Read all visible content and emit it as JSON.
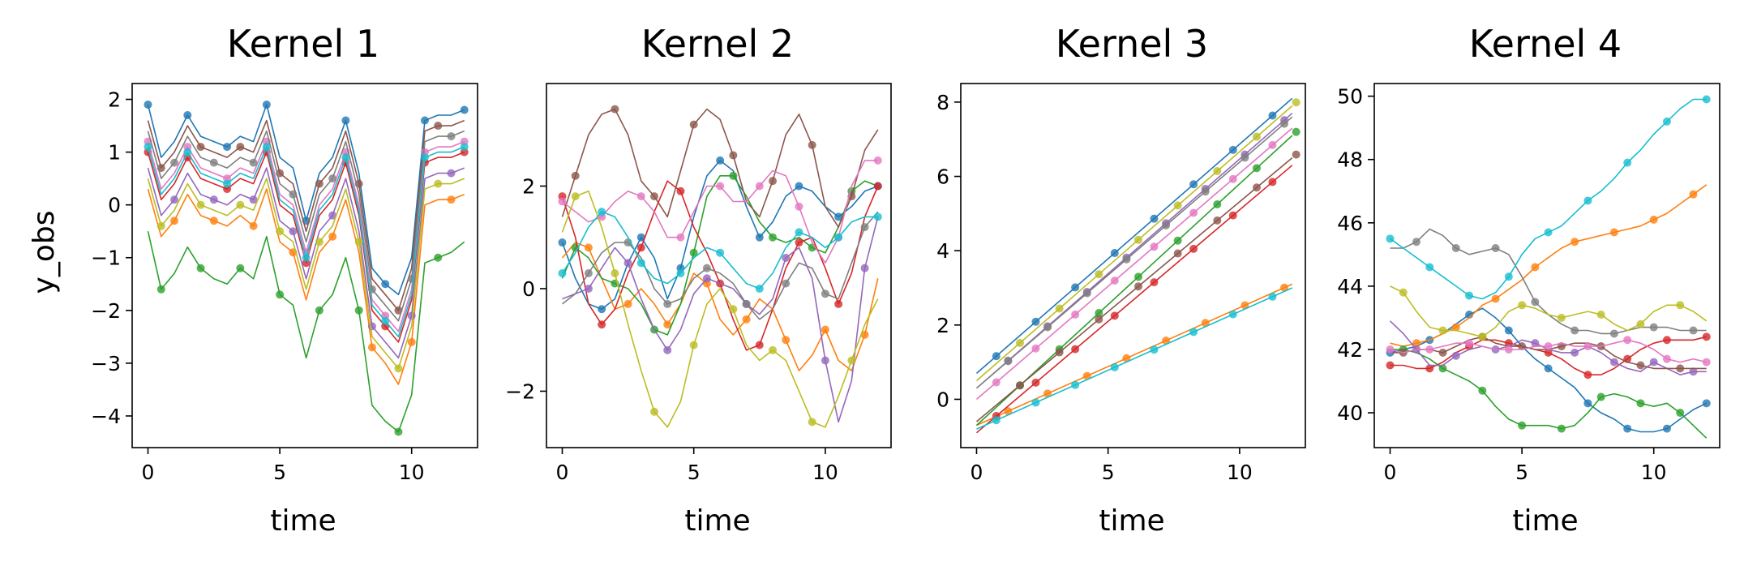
{
  "figure": {
    "ylabel": "y_obs"
  },
  "chart_data": [
    {
      "type": "line",
      "title": "Kernel 1",
      "xlabel": "time",
      "xlim": [
        -0.6,
        12.5
      ],
      "ylim": [
        -4.6,
        2.3
      ],
      "xticks": [
        0,
        5,
        10
      ],
      "yticks": [
        -4,
        -3,
        -2,
        -1,
        0,
        1,
        2
      ],
      "x": [
        0,
        0.5,
        1,
        1.5,
        2,
        2.5,
        3,
        3.5,
        4,
        4.5,
        5,
        5.5,
        6,
        6.5,
        7,
        7.5,
        8,
        8.5,
        9,
        9.5,
        10,
        10.5,
        11,
        11.5,
        12
      ],
      "series": [
        {
          "color": "#1f77b4",
          "values": [
            1.9,
            0.9,
            1.2,
            1.7,
            1.3,
            1.2,
            1.1,
            1.3,
            1.2,
            1.9,
            0.9,
            0.7,
            -0.3,
            0.6,
            0.9,
            1.6,
            0.6,
            -1.2,
            -1.5,
            -1.7,
            -1.0,
            1.6,
            1.7,
            1.7,
            1.8
          ]
        },
        {
          "color": "#ff7f0e",
          "values": [
            0.3,
            -0.6,
            -0.3,
            0.2,
            -0.2,
            -0.3,
            -0.4,
            -0.2,
            -0.4,
            0.3,
            -0.7,
            -0.9,
            -1.8,
            -0.9,
            -0.6,
            0.1,
            -0.9,
            -2.7,
            -3.0,
            -3.4,
            -2.6,
            0.0,
            0.1,
            0.1,
            0.2
          ]
        },
        {
          "color": "#2ca02c",
          "values": [
            -0.5,
            -1.6,
            -1.3,
            -0.8,
            -1.2,
            -1.4,
            -1.5,
            -1.2,
            -1.4,
            -0.6,
            -1.7,
            -1.9,
            -2.9,
            -2.0,
            -1.7,
            -1.0,
            -2.0,
            -3.8,
            -4.1,
            -4.3,
            -3.6,
            -1.1,
            -1.0,
            -0.9,
            -0.7
          ]
        },
        {
          "color": "#d62728",
          "values": [
            1.0,
            0.1,
            0.4,
            0.9,
            0.5,
            0.4,
            0.3,
            0.5,
            0.4,
            1.0,
            0.0,
            -0.2,
            -1.1,
            -0.2,
            0.1,
            0.8,
            -0.2,
            -2.0,
            -2.3,
            -2.6,
            -1.8,
            0.8,
            0.9,
            0.9,
            1.0
          ]
        },
        {
          "color": "#9467bd",
          "values": [
            0.7,
            -0.2,
            0.1,
            0.6,
            0.2,
            0.1,
            0.0,
            0.2,
            0.1,
            0.7,
            -0.3,
            -0.5,
            -1.4,
            -0.5,
            -0.2,
            0.5,
            -0.5,
            -2.3,
            -2.6,
            -2.9,
            -2.1,
            0.5,
            0.6,
            0.6,
            0.7
          ]
        },
        {
          "color": "#8c564b",
          "values": [
            1.6,
            0.7,
            1.0,
            1.5,
            1.1,
            1.0,
            0.9,
            1.1,
            1.0,
            1.6,
            0.6,
            0.4,
            -0.5,
            0.4,
            0.7,
            1.4,
            0.4,
            -1.4,
            -1.7,
            -2.0,
            -1.2,
            1.4,
            1.5,
            1.5,
            1.6
          ]
        },
        {
          "color": "#e377c2",
          "values": [
            1.2,
            0.3,
            0.6,
            1.1,
            0.7,
            0.6,
            0.5,
            0.7,
            0.6,
            1.2,
            0.2,
            0.0,
            -0.9,
            0.0,
            0.3,
            1.0,
            0.0,
            -1.8,
            -2.1,
            -2.4,
            -1.6,
            1.0,
            1.1,
            1.1,
            1.2
          ]
        },
        {
          "color": "#7f7f7f",
          "values": [
            1.4,
            0.5,
            0.8,
            1.3,
            0.9,
            0.8,
            0.7,
            0.9,
            0.8,
            1.4,
            0.4,
            0.2,
            -0.7,
            0.2,
            0.5,
            1.2,
            0.2,
            -1.6,
            -1.9,
            -2.2,
            -1.4,
            1.2,
            1.3,
            1.3,
            1.4
          ]
        },
        {
          "color": "#bcbd22",
          "values": [
            0.5,
            -0.4,
            -0.1,
            0.4,
            0.0,
            -0.1,
            -0.2,
            0.0,
            -0.1,
            0.5,
            -0.5,
            -0.7,
            -1.6,
            -0.7,
            -0.4,
            0.3,
            -0.7,
            -2.5,
            -2.8,
            -3.1,
            -2.3,
            0.3,
            0.4,
            0.4,
            0.5
          ]
        },
        {
          "color": "#17becf",
          "values": [
            1.1,
            0.2,
            0.5,
            1.0,
            0.6,
            0.5,
            0.4,
            0.6,
            0.5,
            1.1,
            0.1,
            -0.1,
            -1.0,
            -0.1,
            0.2,
            0.9,
            -0.1,
            -1.9,
            -2.2,
            -2.5,
            -1.7,
            0.9,
            1.0,
            1.0,
            1.1
          ]
        }
      ]
    },
    {
      "type": "line",
      "title": "Kernel 2",
      "xlabel": "time",
      "xlim": [
        -0.6,
        12.5
      ],
      "ylim": [
        -3.1,
        4.0
      ],
      "xticks": [
        0,
        5,
        10
      ],
      "yticks": [
        -2,
        0,
        2
      ],
      "x": [
        0,
        0.5,
        1,
        1.5,
        2,
        2.5,
        3,
        3.5,
        4,
        4.5,
        5,
        5.5,
        6,
        6.5,
        7,
        7.5,
        8,
        8.5,
        9,
        9.5,
        10,
        10.5,
        11,
        11.5,
        12
      ],
      "series": [
        {
          "color": "#1f77b4",
          "values": [
            0.9,
            0.2,
            -0.3,
            -0.4,
            -0.2,
            0.5,
            1.0,
            0.6,
            -0.2,
            0.4,
            1.4,
            2.2,
            2.5,
            2.3,
            1.6,
            1.0,
            1.3,
            1.8,
            2.0,
            1.9,
            1.6,
            1.4,
            1.6,
            1.9,
            2.0
          ]
        },
        {
          "color": "#ff7f0e",
          "values": [
            0.6,
            0.9,
            0.8,
            0.2,
            -0.4,
            -0.3,
            0.0,
            -0.3,
            -0.7,
            -0.3,
            0.3,
            0.1,
            -0.6,
            -0.9,
            -0.6,
            -0.2,
            -0.4,
            -1.0,
            -1.6,
            -1.3,
            -0.8,
            -1.4,
            -1.6,
            -0.9,
            0.2
          ]
        },
        {
          "color": "#2ca02c",
          "values": [
            0.2,
            0.8,
            0.6,
            0.2,
            0.1,
            0.0,
            -0.3,
            -0.8,
            -0.9,
            -0.3,
            0.7,
            1.8,
            2.2,
            2.2,
            1.8,
            1.3,
            1.0,
            0.9,
            1.0,
            0.8,
            0.7,
            1.2,
            1.9,
            2.1,
            2.0
          ]
        },
        {
          "color": "#d62728",
          "values": [
            1.8,
            1.0,
            -0.3,
            -0.7,
            -0.4,
            0.3,
            0.8,
            1.5,
            2.1,
            1.9,
            1.2,
            0.7,
            0.1,
            -0.6,
            -1.2,
            -1.1,
            -0.4,
            0.4,
            0.9,
            1.0,
            0.4,
            -0.3,
            0.3,
            1.4,
            2.0
          ]
        },
        {
          "color": "#9467bd",
          "values": [
            -0.2,
            -0.1,
            0.0,
            0.4,
            0.8,
            0.5,
            -0.2,
            -0.8,
            -1.2,
            -0.8,
            -0.1,
            0.2,
            0.1,
            0.0,
            -0.3,
            -0.5,
            -0.2,
            0.6,
            0.8,
            0.2,
            -1.4,
            -2.6,
            -1.8,
            0.4,
            1.4
          ]
        },
        {
          "color": "#8c564b",
          "values": [
            1.4,
            2.2,
            3.0,
            3.4,
            3.5,
            3.0,
            2.1,
            1.8,
            1.4,
            2.3,
            3.2,
            3.5,
            3.3,
            2.6,
            1.7,
            1.4,
            2.1,
            3.0,
            3.4,
            2.8,
            1.6,
            1.2,
            1.8,
            2.7,
            3.1
          ]
        },
        {
          "color": "#e377c2",
          "values": [
            1.7,
            1.5,
            1.3,
            1.4,
            1.7,
            1.9,
            1.8,
            1.5,
            1.0,
            1.0,
            1.5,
            2.0,
            2.0,
            1.7,
            1.7,
            2.0,
            2.3,
            2.2,
            1.6,
            0.9,
            0.5,
            1.0,
            2.0,
            2.5,
            2.5
          ]
        },
        {
          "color": "#7f7f7f",
          "values": [
            -0.3,
            -0.1,
            0.3,
            0.7,
            0.9,
            0.9,
            0.6,
            0.0,
            -0.3,
            -0.2,
            0.2,
            0.4,
            0.3,
            0.1,
            -0.3,
            -0.6,
            -0.4,
            0.1,
            0.5,
            0.4,
            -0.1,
            -0.2,
            0.5,
            1.2,
            1.5
          ]
        },
        {
          "color": "#bcbd22",
          "values": [
            1.1,
            1.8,
            1.9,
            1.2,
            0.3,
            -0.7,
            -1.6,
            -2.4,
            -2.7,
            -2.2,
            -1.1,
            -0.3,
            0.0,
            -0.4,
            -1.1,
            -1.4,
            -1.2,
            -1.4,
            -2.0,
            -2.6,
            -2.7,
            -2.1,
            -1.4,
            -0.7,
            -0.2
          ]
        },
        {
          "color": "#17becf",
          "values": [
            0.3,
            0.7,
            1.2,
            1.5,
            1.4,
            1.0,
            0.5,
            0.2,
            0.1,
            0.3,
            0.6,
            0.8,
            0.7,
            0.4,
            0.1,
            0.0,
            0.3,
            0.8,
            1.1,
            1.0,
            0.8,
            1.0,
            1.3,
            1.4,
            1.4
          ]
        }
      ]
    },
    {
      "type": "line",
      "title": "Kernel 3",
      "xlabel": "time",
      "xlim": [
        -0.6,
        12.5
      ],
      "ylim": [
        -1.3,
        8.5
      ],
      "xticks": [
        0,
        5,
        10
      ],
      "yticks": [
        0,
        2,
        4,
        6,
        8
      ],
      "x": [
        0,
        12
      ],
      "series": [
        {
          "color": "#1f77b4",
          "values": [
            0.7,
            8.1
          ]
        },
        {
          "color": "#ff7f0e",
          "values": [
            -0.7,
            3.1
          ]
        },
        {
          "color": "#2ca02c",
          "values": [
            -0.7,
            7.1
          ]
        },
        {
          "color": "#d62728",
          "values": [
            -0.9,
            6.3
          ]
        },
        {
          "color": "#9467bd",
          "values": [
            0.3,
            7.7
          ]
        },
        {
          "color": "#8c564b",
          "values": [
            -0.6,
            6.5
          ]
        },
        {
          "color": "#e377c2",
          "values": [
            0.0,
            7.3
          ]
        },
        {
          "color": "#7f7f7f",
          "values": [
            0.3,
            7.6
          ]
        },
        {
          "color": "#bcbd22",
          "values": [
            0.5,
            7.9
          ]
        },
        {
          "color": "#17becf",
          "values": [
            -0.8,
            3.0
          ]
        }
      ]
    },
    {
      "type": "line",
      "title": "Kernel 4",
      "xlabel": "time",
      "xlim": [
        -0.6,
        12.5
      ],
      "ylim": [
        38.9,
        50.4
      ],
      "xticks": [
        0,
        5,
        10
      ],
      "yticks": [
        40,
        42,
        44,
        46,
        48,
        50
      ],
      "x": [
        0,
        0.5,
        1,
        1.5,
        2,
        2.5,
        3,
        3.5,
        4,
        4.5,
        5,
        5.5,
        6,
        6.5,
        7,
        7.5,
        8,
        8.5,
        9,
        9.5,
        10,
        10.5,
        11,
        11.5,
        12
      ],
      "series": [
        {
          "color": "#1f77b4",
          "values": [
            41.9,
            42.0,
            42.1,
            42.3,
            42.5,
            42.8,
            43.1,
            43.3,
            43.0,
            42.6,
            42.1,
            41.7,
            41.4,
            41.1,
            40.8,
            40.3,
            40.0,
            39.8,
            39.5,
            39.4,
            39.4,
            39.5,
            39.8,
            40.1,
            40.3
          ]
        },
        {
          "color": "#ff7f0e",
          "values": [
            42.2,
            42.1,
            42.2,
            42.3,
            42.5,
            42.7,
            43.0,
            43.4,
            43.6,
            43.9,
            44.2,
            44.6,
            44.9,
            45.2,
            45.4,
            45.5,
            45.6,
            45.7,
            45.8,
            45.9,
            46.1,
            46.3,
            46.6,
            46.9,
            47.2
          ]
        },
        {
          "color": "#2ca02c",
          "values": [
            42.0,
            42.0,
            41.9,
            41.7,
            41.4,
            41.2,
            41.0,
            40.7,
            40.2,
            39.8,
            39.6,
            39.6,
            39.6,
            39.5,
            39.6,
            40.0,
            40.5,
            40.6,
            40.5,
            40.3,
            40.2,
            40.3,
            40.0,
            39.6,
            39.2
          ]
        },
        {
          "color": "#d62728",
          "values": [
            41.5,
            41.5,
            41.4,
            41.4,
            41.6,
            41.9,
            42.1,
            42.3,
            42.3,
            42.2,
            42.1,
            42.0,
            41.9,
            41.7,
            41.4,
            41.2,
            41.2,
            41.4,
            41.7,
            42.0,
            42.2,
            42.3,
            42.3,
            42.3,
            42.4
          ]
        },
        {
          "color": "#9467bd",
          "values": [
            42.9,
            42.5,
            42.0,
            41.5,
            41.5,
            41.8,
            42.0,
            42.1,
            42.0,
            42.1,
            42.3,
            42.2,
            42.0,
            41.9,
            41.9,
            42.1,
            41.9,
            41.6,
            41.4,
            41.3,
            41.6,
            41.4,
            41.2,
            41.3,
            41.3
          ]
        },
        {
          "color": "#8c564b",
          "values": [
            41.9,
            41.9,
            42.0,
            42.0,
            41.9,
            42.1,
            42.3,
            42.4,
            42.2,
            42.1,
            42.1,
            42.0,
            42.0,
            42.1,
            42.2,
            42.2,
            42.1,
            41.8,
            41.6,
            41.5,
            41.4,
            41.4,
            41.4,
            41.4,
            41.4
          ]
        },
        {
          "color": "#e377c2",
          "values": [
            42.0,
            41.9,
            42.0,
            42.0,
            42.1,
            42.2,
            42.2,
            42.1,
            42.0,
            42.0,
            42.0,
            42.1,
            42.1,
            42.2,
            42.1,
            42.1,
            42.1,
            42.2,
            42.3,
            42.2,
            42.0,
            41.7,
            41.6,
            41.7,
            41.6
          ]
        },
        {
          "color": "#7f7f7f",
          "values": [
            45.2,
            45.2,
            45.4,
            45.8,
            45.6,
            45.2,
            45.0,
            45.1,
            45.2,
            45.0,
            44.3,
            43.5,
            43.1,
            42.8,
            42.6,
            42.6,
            42.5,
            42.5,
            42.6,
            42.7,
            42.7,
            42.7,
            42.6,
            42.6,
            42.6
          ]
        },
        {
          "color": "#bcbd22",
          "values": [
            44.0,
            43.8,
            43.2,
            42.7,
            42.6,
            42.6,
            42.5,
            42.4,
            42.7,
            43.2,
            43.4,
            43.3,
            43.1,
            43.0,
            43.1,
            43.2,
            43.1,
            42.8,
            42.6,
            42.8,
            43.2,
            43.4,
            43.4,
            43.2,
            42.9
          ]
        },
        {
          "color": "#17becf",
          "values": [
            45.5,
            45.2,
            44.9,
            44.6,
            44.3,
            44.0,
            43.7,
            43.6,
            43.8,
            44.3,
            45.0,
            45.5,
            45.7,
            45.9,
            46.3,
            46.7,
            47.0,
            47.4,
            47.9,
            48.3,
            48.8,
            49.2,
            49.6,
            49.9,
            49.9
          ]
        }
      ]
    }
  ]
}
